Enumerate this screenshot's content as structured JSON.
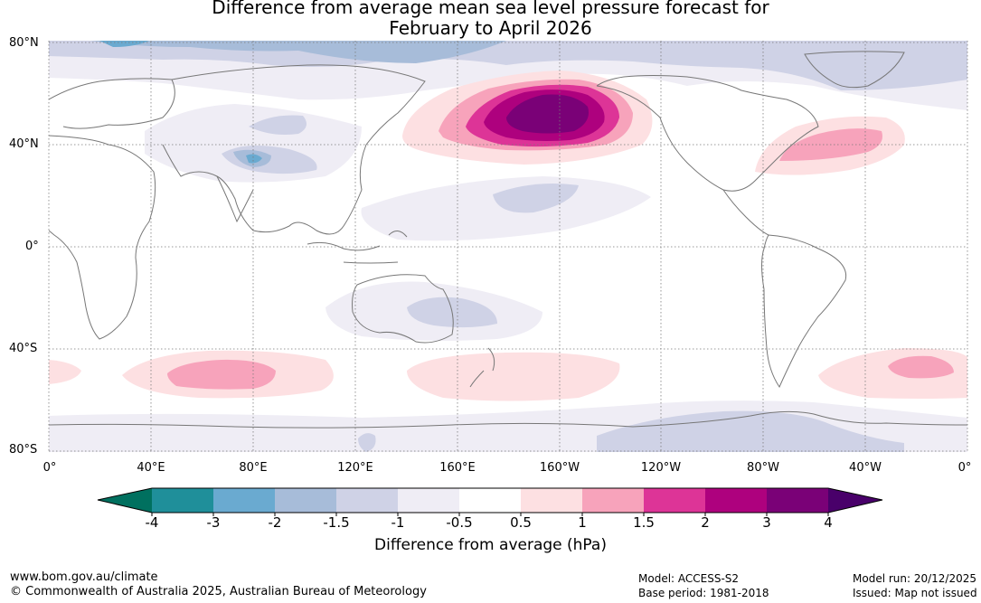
{
  "title": {
    "line1": "Difference from average mean sea level pressure forecast for",
    "line2": "February to April 2026"
  },
  "axes": {
    "lat_labels": [
      "80°N",
      "40°N",
      "0°",
      "40°S",
      "80°S"
    ],
    "lon_labels": [
      "0°",
      "40°E",
      "80°E",
      "120°E",
      "160°E",
      "160°W",
      "120°W",
      "80°W",
      "40°W",
      "0°"
    ]
  },
  "colorbar": {
    "title": "Difference from average (hPa)",
    "ticks": [
      "-4",
      "-3",
      "-2",
      "-1.5",
      "-1",
      "-0.5",
      "0.5",
      "1",
      "1.5",
      "2",
      "3",
      "4"
    ],
    "colors": {
      "below_-4": "#00705f",
      "-4_-3": "#1f8f9a",
      "-3_-2": "#6aaad0",
      "-2_-1.5": "#a7bcd9",
      "-1.5_-1": "#cfd2e6",
      "-1_-0.5": "#efedf5",
      "-0.5_0.5": "#ffffff",
      "0.5_1": "#fde0e2",
      "1_1.5": "#f7a3bb",
      "1.5_2": "#dd3497",
      "2_3": "#ae017e",
      "3_4": "#7a0177",
      "above_4": "#49006a"
    }
  },
  "footer": {
    "url": "www.bom.gov.au/climate",
    "copyright": "© Commonwealth of Australia 2025, Australian Bureau of Meteorology",
    "model": "Model: ACCESS-S2",
    "base_period": "Base period: 1981-2018",
    "model_run": "Model run: 20/12/2025",
    "issued": "Issued: Map not issued"
  }
}
